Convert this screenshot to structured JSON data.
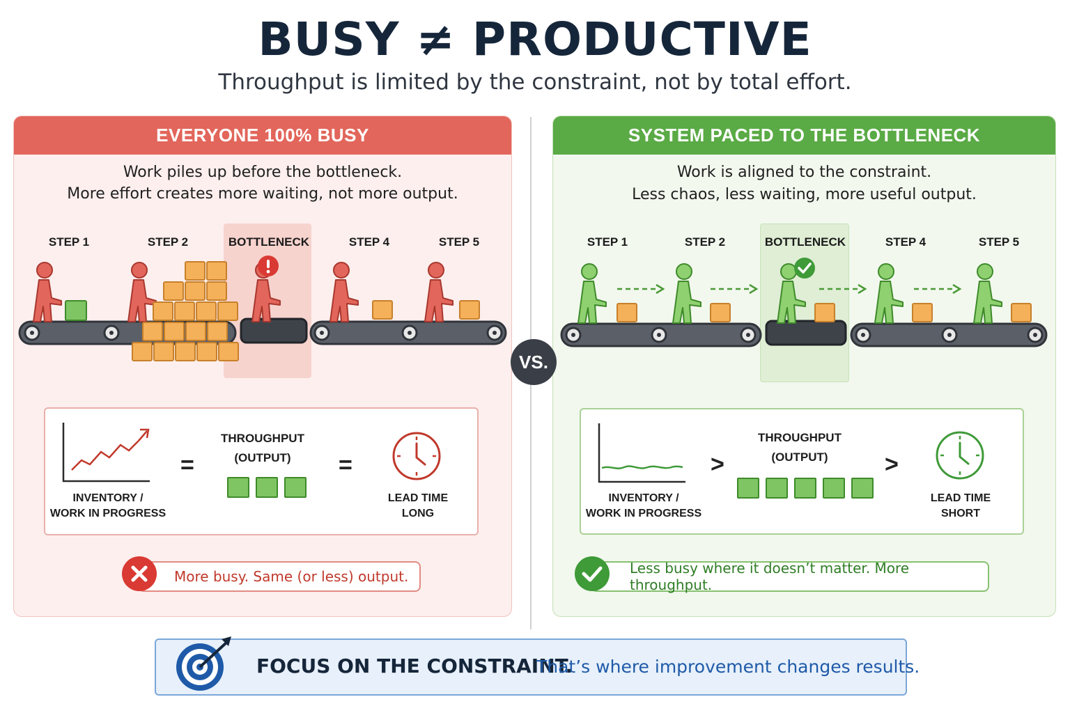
{
  "title": "BUSY ≠ PRODUCTIVE",
  "subtitle": "Throughput is limited by the constraint, not by total effort.",
  "vs_label": "VS.",
  "colors": {
    "red_accent": "#e2665b",
    "green_accent": "#5aaa45",
    "box_orange": "#f5b05a",
    "navy": "#16263a"
  },
  "left_panel": {
    "header": "EVERYONE 100% BUSY",
    "desc_line1": "Work piles up before the bottleneck.",
    "desc_line2": "More effort creates more waiting, not more output.",
    "steps": [
      "STEP 1",
      "STEP 2",
      "BOTTLENECK",
      "STEP 4",
      "STEP 5"
    ],
    "bottleneck_icon": "exclamation-icon",
    "inventory_label_1": "INVENTORY /",
    "inventory_label_2": "WORK IN PROGRESS",
    "inventory_trend": "rising",
    "op1": "=",
    "throughput_label_1": "THROUGHPUT",
    "throughput_label_2": "(OUTPUT)",
    "throughput_units": 3,
    "op2": "=",
    "lead_time_label_1": "LEAD TIME",
    "lead_time_label_2": "LONG",
    "verdict_icon": "x-icon",
    "verdict": "More busy. Same (or less) output."
  },
  "right_panel": {
    "header": "SYSTEM PACED TO THE BOTTLENECK",
    "desc_line1": "Work is aligned to the constraint.",
    "desc_line2": "Less chaos, less waiting, more useful output.",
    "steps": [
      "STEP 1",
      "STEP 2",
      "BOTTLENECK",
      "STEP 4",
      "STEP 5"
    ],
    "bottleneck_icon": "check-icon",
    "inventory_label_1": "INVENTORY /",
    "inventory_label_2": "WORK IN PROGRESS",
    "inventory_trend": "flat",
    "op1": ">",
    "throughput_label_1": "THROUGHPUT",
    "throughput_label_2": "(OUTPUT)",
    "throughput_units": 5,
    "op2": ">",
    "lead_time_label_1": "LEAD TIME",
    "lead_time_label_2": "SHORT",
    "verdict_icon": "check-icon",
    "verdict": "Less busy where it doesn’t matter. More throughput."
  },
  "footer": {
    "icon": "target-icon",
    "bold": "FOCUS ON THE CONSTRAINT.",
    "text": "That’s where improvement changes results."
  }
}
